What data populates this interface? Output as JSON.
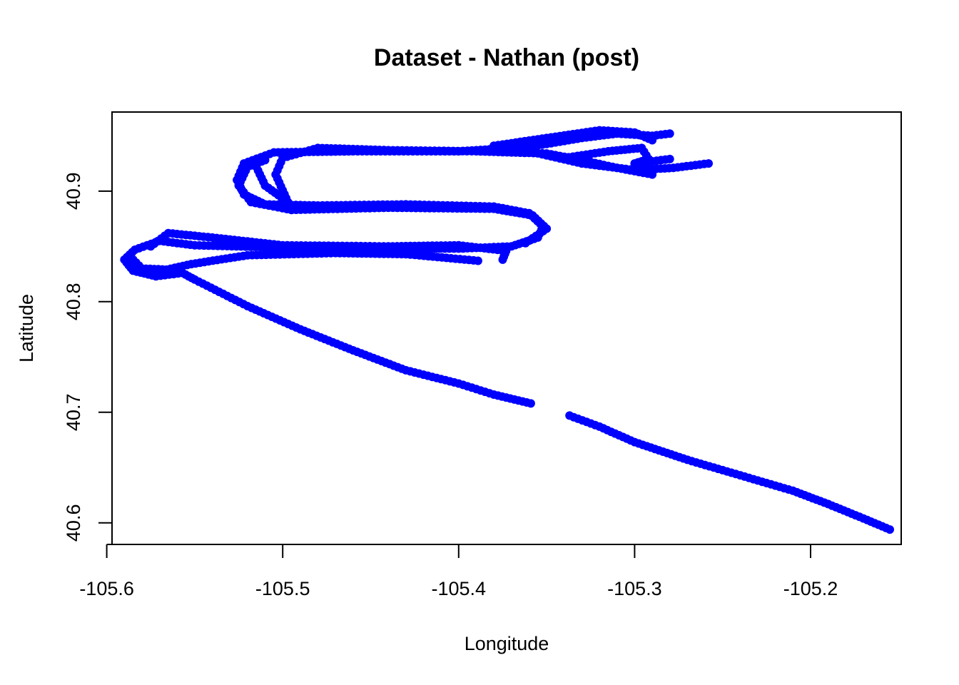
{
  "chart_data": {
    "type": "scatter",
    "title": "Dataset - Nathan (post)",
    "xlabel": "Longitude",
    "ylabel": "Latitude",
    "xlim": [
      -105.597,
      -105.1485
    ],
    "ylim": [
      40.5805,
      40.9715
    ],
    "x_ticks": [
      -105.6,
      -105.5,
      -105.4,
      -105.3,
      -105.2
    ],
    "x_tick_labels": [
      "-105.6",
      "-105.5",
      "-105.4",
      "-105.3",
      "-105.2"
    ],
    "y_ticks": [
      40.6,
      40.7,
      40.8,
      40.9
    ],
    "y_tick_labels": [
      "40.6",
      "40.7",
      "40.8",
      "40.9"
    ],
    "grid": false,
    "legend": "none",
    "point_color": "#0000ff",
    "track_segments": [
      [
        [
          -105.155,
          40.594
        ],
        [
          -105.17,
          40.604
        ],
        [
          -105.19,
          40.617
        ],
        [
          -105.21,
          40.629
        ],
        [
          -105.24,
          40.643
        ],
        [
          -105.27,
          40.657
        ],
        [
          -105.3,
          40.673
        ],
        [
          -105.32,
          40.687
        ],
        [
          -105.337,
          40.697
        ]
      ],
      [
        [
          -105.359,
          40.708
        ],
        [
          -105.38,
          40.716
        ],
        [
          -105.4,
          40.726
        ],
        [
          -105.43,
          40.738
        ],
        [
          -105.46,
          40.756
        ],
        [
          -105.49,
          40.775
        ],
        [
          -105.52,
          40.796
        ],
        [
          -105.55,
          40.82
        ],
        [
          -105.557,
          40.826
        ]
      ],
      [
        [
          -105.557,
          40.826
        ],
        [
          -105.572,
          40.823
        ],
        [
          -105.585,
          40.828
        ],
        [
          -105.59,
          40.838
        ],
        [
          -105.584,
          40.847
        ],
        [
          -105.57,
          40.855
        ],
        [
          -105.55,
          40.851
        ],
        [
          -105.5,
          40.849
        ],
        [
          -105.45,
          40.848
        ],
        [
          -105.4,
          40.848
        ],
        [
          -105.37,
          40.85
        ],
        [
          -105.355,
          40.858
        ],
        [
          -105.352,
          40.868
        ],
        [
          -105.36,
          40.88
        ],
        [
          -105.38,
          40.886
        ],
        [
          -105.43,
          40.888
        ],
        [
          -105.48,
          40.887
        ],
        [
          -105.51,
          40.888
        ],
        [
          -105.522,
          40.897
        ],
        [
          -105.526,
          40.91
        ],
        [
          -105.522,
          40.925
        ],
        [
          -105.505,
          40.935
        ],
        [
          -105.46,
          40.936
        ],
        [
          -105.4,
          40.936
        ],
        [
          -105.36,
          40.94
        ],
        [
          -105.33,
          40.948
        ],
        [
          -105.31,
          40.952
        ],
        [
          -105.29,
          40.95
        ],
        [
          -105.28,
          40.952
        ]
      ],
      [
        [
          -105.585,
          40.838
        ],
        [
          -105.58,
          40.83
        ],
        [
          -105.566,
          40.829
        ],
        [
          -105.552,
          40.834
        ],
        [
          -105.52,
          40.842
        ],
        [
          -105.47,
          40.844
        ],
        [
          -105.43,
          40.843
        ],
        [
          -105.389,
          40.837
        ]
      ],
      [
        [
          -105.575,
          40.85
        ],
        [
          -105.565,
          40.862
        ],
        [
          -105.54,
          40.858
        ],
        [
          -105.5,
          40.851
        ],
        [
          -105.44,
          40.85
        ],
        [
          -105.4,
          40.851
        ],
        [
          -105.373,
          40.846
        ],
        [
          -105.375,
          40.838
        ]
      ],
      [
        [
          -105.362,
          40.853
        ],
        [
          -105.35,
          40.866
        ],
        [
          -105.358,
          40.878
        ],
        [
          -105.38,
          40.884
        ],
        [
          -105.44,
          40.885
        ],
        [
          -105.495,
          40.883
        ],
        [
          -105.518,
          40.89
        ],
        [
          -105.525,
          40.905
        ],
        [
          -105.52,
          40.922
        ],
        [
          -105.51,
          40.928
        ]
      ],
      [
        [
          -105.515,
          40.922
        ],
        [
          -105.51,
          40.905
        ],
        [
          -105.497,
          40.89
        ],
        [
          -105.504,
          40.915
        ],
        [
          -105.5,
          40.93
        ],
        [
          -105.48,
          40.939
        ],
        [
          -105.44,
          40.937
        ],
        [
          -105.39,
          40.936
        ],
        [
          -105.35,
          40.934
        ],
        [
          -105.33,
          40.928
        ],
        [
          -105.31,
          40.921
        ],
        [
          -105.29,
          40.915
        ]
      ],
      [
        [
          -105.36,
          40.936
        ],
        [
          -105.33,
          40.925
        ],
        [
          -105.3,
          40.919
        ],
        [
          -105.278,
          40.921
        ],
        [
          -105.258,
          40.925
        ]
      ],
      [
        [
          -105.34,
          40.93
        ],
        [
          -105.315,
          40.936
        ],
        [
          -105.296,
          40.939
        ],
        [
          -105.292,
          40.929
        ],
        [
          -105.3,
          40.925
        ],
        [
          -105.28,
          40.929
        ]
      ],
      [
        [
          -105.38,
          40.941
        ],
        [
          -105.35,
          40.948
        ],
        [
          -105.32,
          40.955
        ],
        [
          -105.3,
          40.953
        ],
        [
          -105.29,
          40.946
        ]
      ]
    ]
  }
}
